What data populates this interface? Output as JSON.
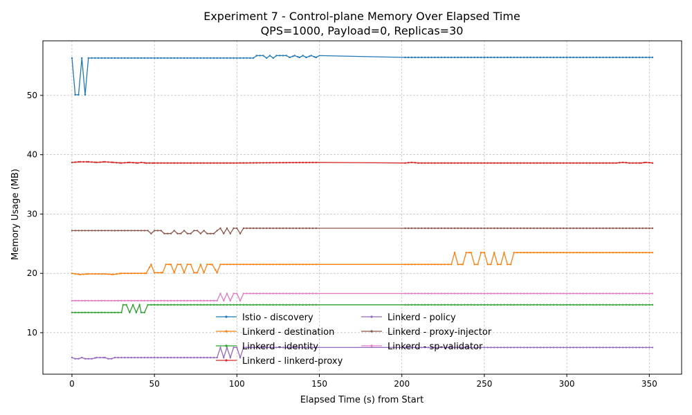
{
  "chart_data": {
    "type": "line",
    "title": "Experiment 7 - Control-plane Memory Over Elapsed Time",
    "subtitle": "QPS=1000, Payload=0, Replicas=30",
    "xlabel": "Elapsed Time (s) from Start",
    "ylabel": "Memory Usage (MB)",
    "xlim": [
      -17.6,
      369.6
    ],
    "ylim": [
      3.0,
      59.2
    ],
    "xticks": [
      0,
      50,
      100,
      150,
      200,
      250,
      300,
      350
    ],
    "yticks": [
      10,
      20,
      30,
      40,
      50
    ],
    "grid": true,
    "legend_position": "lower-center",
    "series": [
      {
        "name": "Istio - discovery",
        "color": "#1f77b4",
        "points": [
          [
            0,
            56.3
          ],
          [
            2,
            50.1
          ],
          [
            4,
            50.1
          ],
          [
            6,
            56.3
          ],
          [
            8,
            50.1
          ],
          [
            10,
            56.3
          ],
          [
            20,
            56.3
          ],
          [
            40,
            56.3
          ],
          [
            60,
            56.3
          ],
          [
            80,
            56.3
          ],
          [
            100,
            56.3
          ],
          [
            110,
            56.3
          ],
          [
            112,
            56.7
          ],
          [
            116,
            56.7
          ],
          [
            118,
            56.3
          ],
          [
            120,
            56.7
          ],
          [
            122,
            56.3
          ],
          [
            124,
            56.7
          ],
          [
            130,
            56.7
          ],
          [
            132,
            56.4
          ],
          [
            135,
            56.7
          ],
          [
            138,
            56.4
          ],
          [
            140,
            56.7
          ],
          [
            142,
            56.4
          ],
          [
            145,
            56.7
          ],
          [
            148,
            56.4
          ],
          [
            150,
            56.7
          ],
          [
            202,
            56.4
          ],
          [
            250,
            56.4
          ],
          [
            300,
            56.4
          ],
          [
            352,
            56.4
          ]
        ]
      },
      {
        "name": "Linkerd - destination",
        "color": "#ff7f0e",
        "points": [
          [
            0,
            20.0
          ],
          [
            5,
            19.8
          ],
          [
            10,
            19.9
          ],
          [
            20,
            19.9
          ],
          [
            25,
            19.8
          ],
          [
            30,
            20.0
          ],
          [
            40,
            20.0
          ],
          [
            45,
            20.0
          ],
          [
            48,
            21.5
          ],
          [
            50,
            20.1
          ],
          [
            55,
            20.1
          ],
          [
            57,
            21.5
          ],
          [
            60,
            21.5
          ],
          [
            62,
            20.1
          ],
          [
            64,
            21.5
          ],
          [
            66,
            21.5
          ],
          [
            68,
            20.1
          ],
          [
            70,
            21.5
          ],
          [
            72,
            21.5
          ],
          [
            74,
            20.1
          ],
          [
            76,
            20.1
          ],
          [
            78,
            21.5
          ],
          [
            80,
            20.1
          ],
          [
            82,
            21.5
          ],
          [
            85,
            21.5
          ],
          [
            88,
            20.1
          ],
          [
            90,
            21.5
          ],
          [
            100,
            21.5
          ],
          [
            150,
            21.5
          ],
          [
            202,
            21.5
          ],
          [
            230,
            21.5
          ],
          [
            232,
            23.5
          ],
          [
            234,
            21.5
          ],
          [
            237,
            21.5
          ],
          [
            239,
            23.5
          ],
          [
            242,
            23.5
          ],
          [
            244,
            21.5
          ],
          [
            246,
            21.5
          ],
          [
            248,
            23.5
          ],
          [
            250,
            23.5
          ],
          [
            252,
            21.5
          ],
          [
            254,
            21.5
          ],
          [
            256,
            23.5
          ],
          [
            258,
            21.5
          ],
          [
            260,
            21.5
          ],
          [
            262,
            23.5
          ],
          [
            264,
            21.5
          ],
          [
            266,
            21.5
          ],
          [
            268,
            23.5
          ],
          [
            300,
            23.5
          ],
          [
            352,
            23.5
          ]
        ]
      },
      {
        "name": "Linkerd - identity",
        "color": "#2ca02c",
        "points": [
          [
            0,
            13.4
          ],
          [
            10,
            13.4
          ],
          [
            20,
            13.4
          ],
          [
            30,
            13.4
          ],
          [
            31,
            14.7
          ],
          [
            33,
            14.7
          ],
          [
            35,
            13.4
          ],
          [
            37,
            14.7
          ],
          [
            39,
            13.4
          ],
          [
            41,
            14.7
          ],
          [
            42,
            13.4
          ],
          [
            44,
            13.4
          ],
          [
            46,
            14.7
          ],
          [
            50,
            14.7
          ],
          [
            100,
            14.7
          ],
          [
            150,
            14.7
          ],
          [
            202,
            14.7
          ],
          [
            300,
            14.7
          ],
          [
            352,
            14.7
          ]
        ]
      },
      {
        "name": "Linkerd - linkerd-proxy",
        "color": "#d62728",
        "points": [
          [
            0,
            38.7
          ],
          [
            5,
            38.8
          ],
          [
            10,
            38.8
          ],
          [
            15,
            38.7
          ],
          [
            20,
            38.8
          ],
          [
            25,
            38.7
          ],
          [
            30,
            38.6
          ],
          [
            35,
            38.7
          ],
          [
            40,
            38.6
          ],
          [
            42,
            38.7
          ],
          [
            45,
            38.6
          ],
          [
            50,
            38.6
          ],
          [
            100,
            38.6
          ],
          [
            150,
            38.7
          ],
          [
            202,
            38.6
          ],
          [
            206,
            38.7
          ],
          [
            210,
            38.6
          ],
          [
            250,
            38.6
          ],
          [
            300,
            38.6
          ],
          [
            330,
            38.6
          ],
          [
            334,
            38.7
          ],
          [
            338,
            38.6
          ],
          [
            345,
            38.6
          ],
          [
            348,
            38.7
          ],
          [
            352,
            38.6
          ]
        ]
      },
      {
        "name": "Linkerd - policy",
        "color": "#9467bd",
        "points": [
          [
            0,
            5.8
          ],
          [
            2,
            5.6
          ],
          [
            4,
            5.6
          ],
          [
            6,
            5.8
          ],
          [
            8,
            5.6
          ],
          [
            12,
            5.6
          ],
          [
            15,
            5.8
          ],
          [
            20,
            5.8
          ],
          [
            22,
            5.6
          ],
          [
            24,
            5.6
          ],
          [
            26,
            5.8
          ],
          [
            30,
            5.8
          ],
          [
            50,
            5.8
          ],
          [
            88,
            5.8
          ],
          [
            90,
            7.5
          ],
          [
            92,
            5.8
          ],
          [
            94,
            7.5
          ],
          [
            96,
            5.8
          ],
          [
            98,
            7.5
          ],
          [
            100,
            7.5
          ],
          [
            102,
            5.8
          ],
          [
            104,
            7.5
          ],
          [
            110,
            7.5
          ],
          [
            150,
            7.5
          ],
          [
            202,
            7.5
          ],
          [
            250,
            7.5
          ],
          [
            300,
            7.5
          ],
          [
            352,
            7.5
          ]
        ]
      },
      {
        "name": "Linkerd - proxy-injector",
        "color": "#8c564b",
        "points": [
          [
            0,
            27.2
          ],
          [
            20,
            27.2
          ],
          [
            40,
            27.2
          ],
          [
            46,
            27.2
          ],
          [
            48,
            26.7
          ],
          [
            50,
            27.2
          ],
          [
            54,
            27.2
          ],
          [
            56,
            26.7
          ],
          [
            60,
            26.7
          ],
          [
            62,
            27.2
          ],
          [
            64,
            26.7
          ],
          [
            66,
            26.7
          ],
          [
            68,
            27.2
          ],
          [
            70,
            26.7
          ],
          [
            72,
            26.7
          ],
          [
            74,
            27.2
          ],
          [
            76,
            27.2
          ],
          [
            78,
            26.7
          ],
          [
            80,
            27.2
          ],
          [
            82,
            26.7
          ],
          [
            86,
            26.7
          ],
          [
            88,
            27.2
          ],
          [
            90,
            27.6
          ],
          [
            92,
            26.7
          ],
          [
            94,
            27.6
          ],
          [
            96,
            26.7
          ],
          [
            98,
            27.6
          ],
          [
            100,
            27.6
          ],
          [
            102,
            26.7
          ],
          [
            104,
            27.6
          ],
          [
            150,
            27.6
          ],
          [
            202,
            27.6
          ],
          [
            250,
            27.6
          ],
          [
            300,
            27.6
          ],
          [
            352,
            27.6
          ]
        ]
      },
      {
        "name": "Linkerd - sp-validator",
        "color": "#e377c2",
        "points": [
          [
            0,
            15.4
          ],
          [
            20,
            15.4
          ],
          [
            40,
            15.4
          ],
          [
            60,
            15.4
          ],
          [
            80,
            15.4
          ],
          [
            88,
            15.4
          ],
          [
            90,
            16.6
          ],
          [
            92,
            15.4
          ],
          [
            94,
            16.6
          ],
          [
            96,
            15.4
          ],
          [
            98,
            16.6
          ],
          [
            100,
            16.6
          ],
          [
            102,
            15.4
          ],
          [
            104,
            16.6
          ],
          [
            110,
            16.6
          ],
          [
            150,
            16.6
          ],
          [
            202,
            16.6
          ],
          [
            250,
            16.6
          ],
          [
            300,
            16.6
          ],
          [
            352,
            16.6
          ]
        ]
      }
    ]
  }
}
